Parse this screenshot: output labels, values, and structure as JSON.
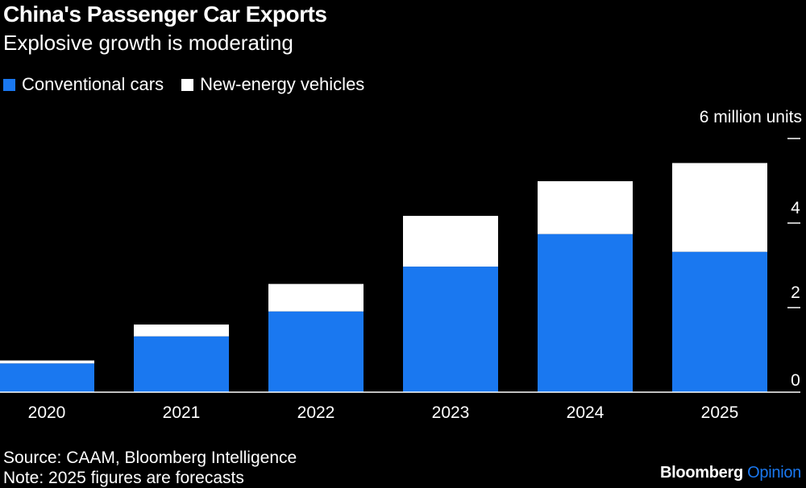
{
  "title": "China's Passenger Car Exports",
  "subtitle": "Explosive growth is moderating",
  "legend": [
    {
      "label": "Conventional cars",
      "color": "#1a78f0"
    },
    {
      "label": "New-energy vehicles",
      "color": "#ffffff"
    }
  ],
  "footer": {
    "source": "Source: CAAM, Bloomberg Intelligence",
    "note": "Note: 2025 figures are forecasts"
  },
  "brand": {
    "name": "Bloomberg",
    "suffix": "Opinion"
  },
  "chart_data": {
    "type": "bar",
    "stacked": true,
    "categories": [
      "2020",
      "2021",
      "2022",
      "2023",
      "2024",
      "2025"
    ],
    "series": [
      {
        "name": "Conventional cars",
        "color": "#1a78f0",
        "values": [
          0.68,
          1.32,
          1.91,
          2.97,
          3.74,
          3.32
        ]
      },
      {
        "name": "New-energy vehicles",
        "color": "#ffffff",
        "values": [
          0.07,
          0.28,
          0.65,
          1.2,
          1.25,
          2.1
        ]
      }
    ],
    "y_axis_unit_label": "6 million units",
    "y_ticks": [
      0,
      2,
      4,
      6
    ],
    "y_tick_labels": [
      "0",
      "2",
      "4",
      ""
    ],
    "ylim": [
      0,
      6
    ],
    "xlabel": "",
    "ylabel": "",
    "legend_position": "top-left"
  }
}
